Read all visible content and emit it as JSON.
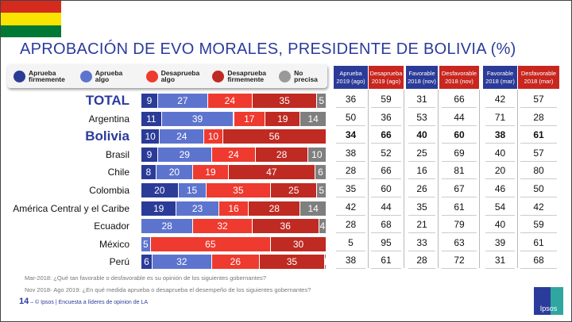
{
  "title": "APROBACIÓN DE EVO MORALES, PRESIDENTE DE BOLIVIA (%)",
  "legend": [
    {
      "label": "Aprueba firmemente",
      "color": "#2b3b98"
    },
    {
      "label": "Aprueba algo",
      "color": "#5d74cf"
    },
    {
      "label": "Desaprueba algo",
      "color": "#ee3a2f"
    },
    {
      "label": "Desaprueba firmemente",
      "color": "#bf2a22"
    },
    {
      "label": "No precisa",
      "color": "#999999"
    }
  ],
  "chart_data": {
    "type": "bar",
    "stacked": true,
    "orientation": "horizontal",
    "categories": [
      "TOTAL",
      "Argentina",
      "Bolivia",
      "Brasil",
      "Chile",
      "Colombia",
      "América Central y el Caribe",
      "Ecuador",
      "México",
      "Perú"
    ],
    "series": [
      {
        "name": "Aprueba firmemente",
        "values": [
          9,
          11,
          10,
          9,
          8,
          20,
          19,
          0,
          0,
          6
        ]
      },
      {
        "name": "Aprueba algo",
        "values": [
          27,
          39,
          24,
          29,
          20,
          15,
          23,
          28,
          5,
          32
        ]
      },
      {
        "name": "Desaprueba algo",
        "values": [
          24,
          17,
          10,
          24,
          19,
          35,
          16,
          32,
          65,
          26
        ]
      },
      {
        "name": "Desaprueba firmemente",
        "values": [
          35,
          19,
          56,
          28,
          47,
          25,
          28,
          36,
          30,
          35
        ]
      },
      {
        "name": "No precisa",
        "values": [
          5,
          14,
          0,
          10,
          6,
          5,
          14,
          4,
          0,
          1
        ]
      }
    ],
    "xlim": [
      0,
      100
    ]
  },
  "table": {
    "headers": [
      {
        "label": "Aprueba 2019 (ago)",
        "color": "#2b3b98"
      },
      {
        "label": "Desaprueba 2019 (ago)",
        "color": "#c8261f"
      },
      {
        "label": "Favorable 2018 (nov)",
        "color": "#2b3b98"
      },
      {
        "label": "Desfavorable 2018 (nov)",
        "color": "#c8261f"
      },
      {
        "label": "Favorable 2018 (mar)",
        "color": "#2b3b98"
      },
      {
        "label": "Desfavorable 2018 (mar)",
        "color": "#c8261f"
      }
    ],
    "rows": [
      [
        "36",
        "59",
        "31",
        "66",
        "42",
        "57"
      ],
      [
        "50",
        "36",
        "53",
        "44",
        "71",
        "28"
      ],
      [
        "34",
        "66",
        "40",
        "60",
        "38",
        "61"
      ],
      [
        "38",
        "52",
        "25",
        "69",
        "40",
        "57"
      ],
      [
        "28",
        "66",
        "16",
        "81",
        "20",
        "80"
      ],
      [
        "35",
        "60",
        "26",
        "67",
        "46",
        "50"
      ],
      [
        "42",
        "44",
        "35",
        "61",
        "54",
        "42"
      ],
      [
        "28",
        "68",
        "21",
        "79",
        "40",
        "59"
      ],
      [
        "5",
        "95",
        "33",
        "63",
        "39",
        "61"
      ],
      [
        "38",
        "61",
        "28",
        "72",
        "31",
        "68"
      ]
    ]
  },
  "notes": [
    "Mar-2018: ¿Qué tan favorable o desfavorable es su opinión de los siguientes gobernantes?",
    "Nov 2018- Ago 2019: ¿En qué medida aprueba o desaprueba el desempeño de los siguientes gobernantes?"
  ],
  "footer": {
    "page": "14",
    "text": "© Ipsos | Encuesta a líderes de opinion de LA"
  },
  "logo": "Ipsos",
  "flag_colors": [
    "#d52b1e",
    "#f9e300",
    "#007934"
  ]
}
